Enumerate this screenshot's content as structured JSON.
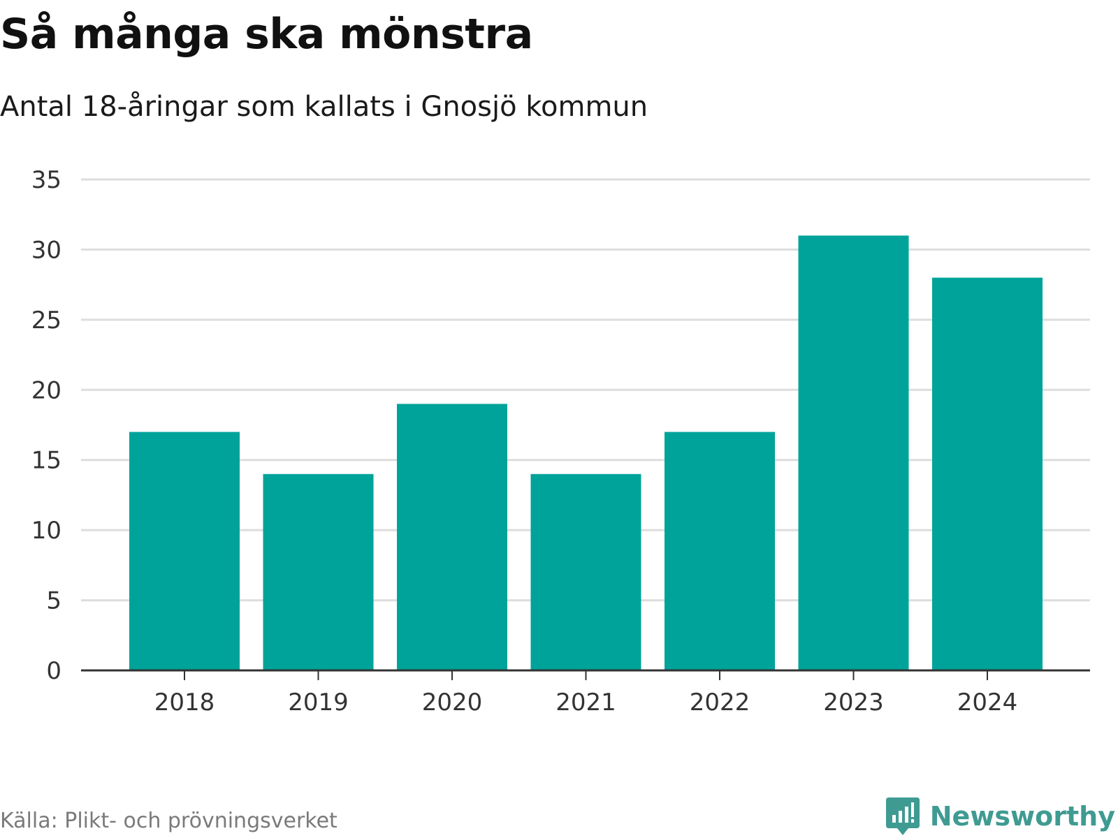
{
  "header": {
    "title": "Så många ska mönstra",
    "subtitle": "Antal 18-åringar som kallats i Gnosjö kommun"
  },
  "footer": {
    "source": "Källa: Plikt- och prövningsverket",
    "brand": "Newsworthy",
    "brand_icon": "newsworthy-logo-icon",
    "brand_color": "#3f9b92"
  },
  "chart_data": {
    "type": "bar",
    "title": "Så många ska mönstra",
    "subtitle": "Antal 18-åringar som kallats i Gnosjö kommun",
    "categories": [
      "2018",
      "2019",
      "2020",
      "2021",
      "2022",
      "2023",
      "2024"
    ],
    "values": [
      17,
      14,
      19,
      14,
      17,
      31,
      28
    ],
    "xlabel": "",
    "ylabel": "",
    "ylim": [
      0,
      35
    ],
    "yticks": [
      0,
      5,
      10,
      15,
      20,
      25,
      30,
      35
    ],
    "grid": true,
    "legend": "none",
    "bar_color": "#00a39a",
    "grid_color": "#dddddd",
    "axis_color": "#333333"
  }
}
